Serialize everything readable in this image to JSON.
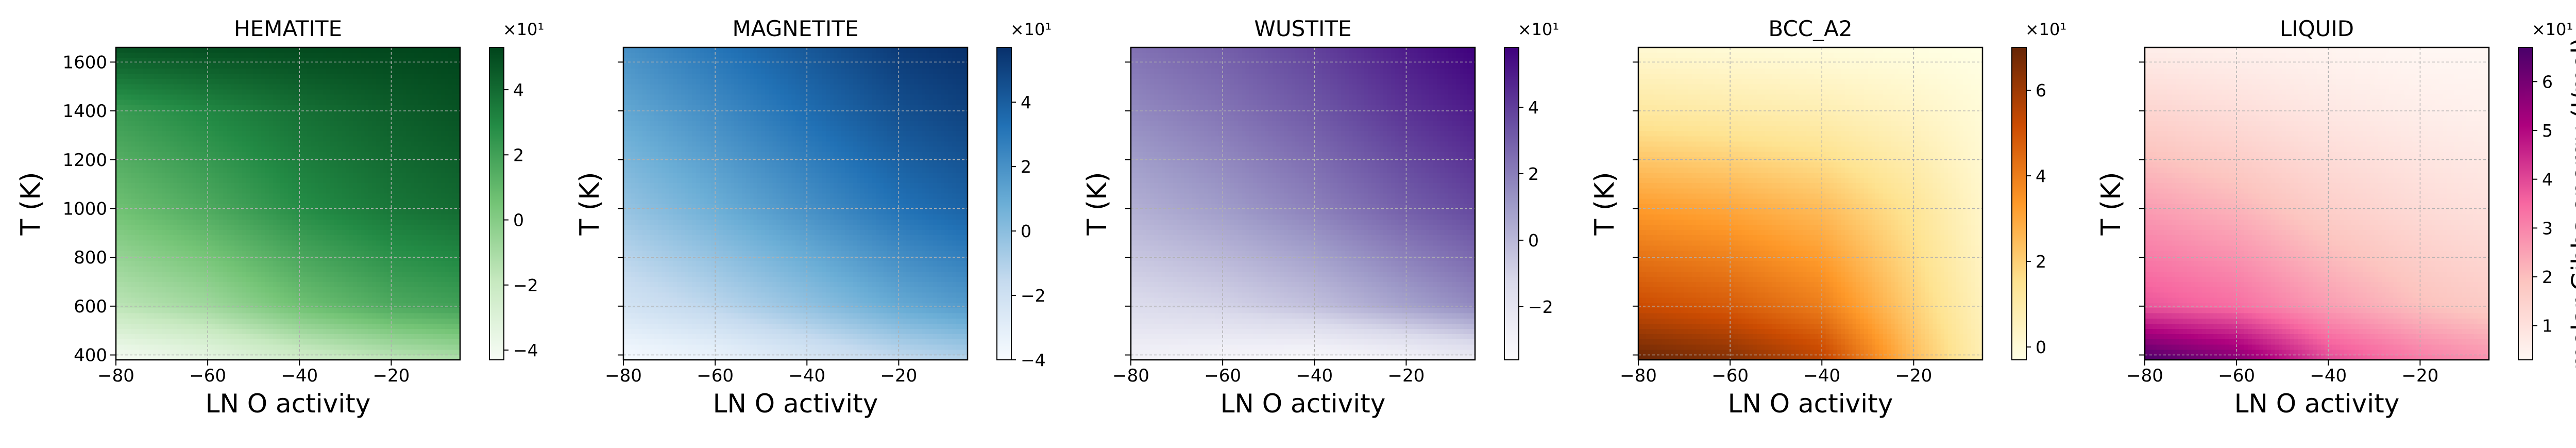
{
  "figure": {
    "shared_ylabel": "T (K)",
    "shared_xlabel": "LN O activity",
    "colorbar_label": "molar Gibbs energy (J/mol)",
    "colorbar_multiplier": "×10¹"
  },
  "chart_data": [
    {
      "type": "heatmap",
      "title": "HEMATITE",
      "xlabel": "LN O activity",
      "ylabel": "T (K)",
      "xlim": [
        -80,
        -5
      ],
      "ylim": [
        380,
        1660
      ],
      "xticks": [
        -80,
        -60,
        -40,
        -20
      ],
      "yticks": [
        400,
        600,
        800,
        1000,
        1200,
        1400,
        1600
      ],
      "grid": true,
      "colormap": "Greens",
      "colormap_stops": [
        "#f7fcf5",
        "#c7e9c0",
        "#74c476",
        "#238b45",
        "#00441b"
      ],
      "colorbar": {
        "range": [
          -4.3,
          5.3
        ],
        "ticks": [
          -4,
          -2,
          0,
          2,
          4
        ],
        "multiplier": "×10¹",
        "label": ""
      },
      "surface": {
        "x": [
          -80,
          -60,
          -40,
          -20,
          -5
        ],
        "y": [
          380,
          600,
          1000,
          1400,
          1660
        ],
        "z": [
          [
            -4.3,
            -3.6,
            -2.5,
            -1.7,
            -1.2
          ],
          [
            -1.6,
            -0.8,
            0.6,
            1.6,
            2.0
          ],
          [
            0.6,
            1.6,
            2.8,
            3.6,
            4.0
          ],
          [
            2.2,
            3.0,
            3.8,
            4.4,
            4.8
          ],
          [
            4.8,
            5.0,
            5.1,
            5.2,
            5.3
          ]
        ]
      }
    },
    {
      "type": "heatmap",
      "title": "MAGNETITE",
      "xlabel": "LN O activity",
      "ylabel": "T (K)",
      "xlim": [
        -80,
        -5
      ],
      "ylim": [
        380,
        1660
      ],
      "xticks": [
        -80,
        -60,
        -40,
        -20
      ],
      "yticks": [
        400,
        600,
        800,
        1000,
        1200,
        1400,
        1600
      ],
      "grid": true,
      "colormap": "Blues",
      "colormap_stops": [
        "#f7fbff",
        "#c6dbef",
        "#6baed6",
        "#2171b5",
        "#08306b"
      ],
      "colorbar": {
        "range": [
          -4.0,
          5.7
        ],
        "ticks": [
          -4,
          -2,
          0,
          2,
          4
        ],
        "multiplier": "×10¹",
        "label": ""
      },
      "surface": {
        "x": [
          -80,
          -60,
          -40,
          -20,
          -5
        ],
        "y": [
          380,
          600,
          1000,
          1400,
          1660
        ],
        "z": [
          [
            -4.0,
            -3.5,
            -2.6,
            -1.6,
            -1.1
          ],
          [
            -2.2,
            -1.3,
            -0.2,
            1.0,
            1.6
          ],
          [
            -0.3,
            0.8,
            2.0,
            3.2,
            3.8
          ],
          [
            1.1,
            2.2,
            3.4,
            4.5,
            5.0
          ],
          [
            2.0,
            3.1,
            4.2,
            5.3,
            5.7
          ]
        ]
      }
    },
    {
      "type": "heatmap",
      "title": "WUSTITE",
      "xlabel": "LN O activity",
      "ylabel": "T (K)",
      "xlim": [
        -80,
        -5
      ],
      "ylim": [
        380,
        1660
      ],
      "xticks": [
        -80,
        -60,
        -40,
        -20
      ],
      "yticks": [
        400,
        600,
        800,
        1000,
        1200,
        1400,
        1600
      ],
      "grid": true,
      "colormap": "Purples",
      "colormap_stops": [
        "#fcfbfd",
        "#dadaeb",
        "#9e9ac8",
        "#6a51a3",
        "#3f007d"
      ],
      "colorbar": {
        "range": [
          -3.6,
          5.8
        ],
        "ticks": [
          -2,
          0,
          2,
          4
        ],
        "multiplier": "×10¹",
        "label": ""
      },
      "surface": {
        "x": [
          -80,
          -60,
          -40,
          -20,
          -5
        ],
        "y": [
          380,
          600,
          1000,
          1400,
          1660
        ],
        "z": [
          [
            -3.0,
            -3.3,
            -3.6,
            -3.2,
            -2.6
          ],
          [
            -1.4,
            -1.0,
            -0.3,
            0.8,
            1.6
          ],
          [
            0.3,
            1.0,
            1.9,
            3.0,
            3.7
          ],
          [
            1.6,
            2.3,
            3.2,
            4.3,
            5.0
          ],
          [
            2.4,
            3.0,
            3.9,
            5.0,
            5.8
          ]
        ]
      }
    },
    {
      "type": "heatmap",
      "title": "BCC_A2",
      "xlabel": "LN O activity",
      "ylabel": "T (K)",
      "xlim": [
        -80,
        -5
      ],
      "ylim": [
        380,
        1660
      ],
      "xticks": [
        -80,
        -60,
        -40,
        -20
      ],
      "yticks": [
        400,
        600,
        800,
        1000,
        1200,
        1400,
        1600
      ],
      "grid": true,
      "colormap": "YlOrBr",
      "colormap_stops": [
        "#ffffe5",
        "#fee391",
        "#fe9929",
        "#cc4c02",
        "#662506"
      ],
      "colorbar": {
        "range": [
          -0.3,
          7.0
        ],
        "ticks": [
          0,
          2,
          4,
          6
        ],
        "multiplier": "×10¹",
        "label": ""
      },
      "surface": {
        "x": [
          -80,
          -60,
          -40,
          -20,
          -5
        ],
        "y": [
          380,
          600,
          1000,
          1400,
          1660
        ],
        "z": [
          [
            7.0,
            6.5,
            5.5,
            2.5,
            0.8
          ],
          [
            5.2,
            4.8,
            4.0,
            2.0,
            0.6
          ],
          [
            3.3,
            3.0,
            2.5,
            1.4,
            0.3
          ],
          [
            1.2,
            1.0,
            0.8,
            0.4,
            0.0
          ],
          [
            0.1,
            0.0,
            -0.1,
            -0.2,
            -0.3
          ]
        ]
      }
    },
    {
      "type": "heatmap",
      "title": "LIQUID",
      "xlabel": "LN O activity",
      "ylabel": "T (K)",
      "xlim": [
        -80,
        -5
      ],
      "ylim": [
        380,
        1660
      ],
      "xticks": [
        -80,
        -60,
        -40,
        -20
      ],
      "yticks": [
        400,
        600,
        800,
        1000,
        1200,
        1400,
        1600
      ],
      "grid": true,
      "colormap": "RdPu",
      "colormap_stops": [
        "#fff7f3",
        "#fcc5c0",
        "#f768a1",
        "#ae017e",
        "#49006a"
      ],
      "colorbar": {
        "range": [
          0.3,
          6.7
        ],
        "ticks": [
          1,
          2,
          3,
          4,
          5,
          6
        ],
        "multiplier": "×10¹",
        "label": "molar Gibbs energy (J/mol)"
      },
      "surface": {
        "x": [
          -80,
          -60,
          -40,
          -20,
          -5
        ],
        "y": [
          380,
          600,
          1000,
          1400,
          1660
        ],
        "z": [
          [
            6.7,
            5.8,
            4.0,
            3.2,
            2.8
          ],
          [
            3.8,
            3.4,
            2.6,
            2.0,
            1.7
          ],
          [
            2.6,
            2.2,
            1.6,
            1.2,
            1.0
          ],
          [
            1.4,
            1.1,
            0.8,
            0.6,
            0.5
          ],
          [
            0.6,
            0.5,
            0.4,
            0.3,
            0.3
          ]
        ]
      }
    }
  ]
}
